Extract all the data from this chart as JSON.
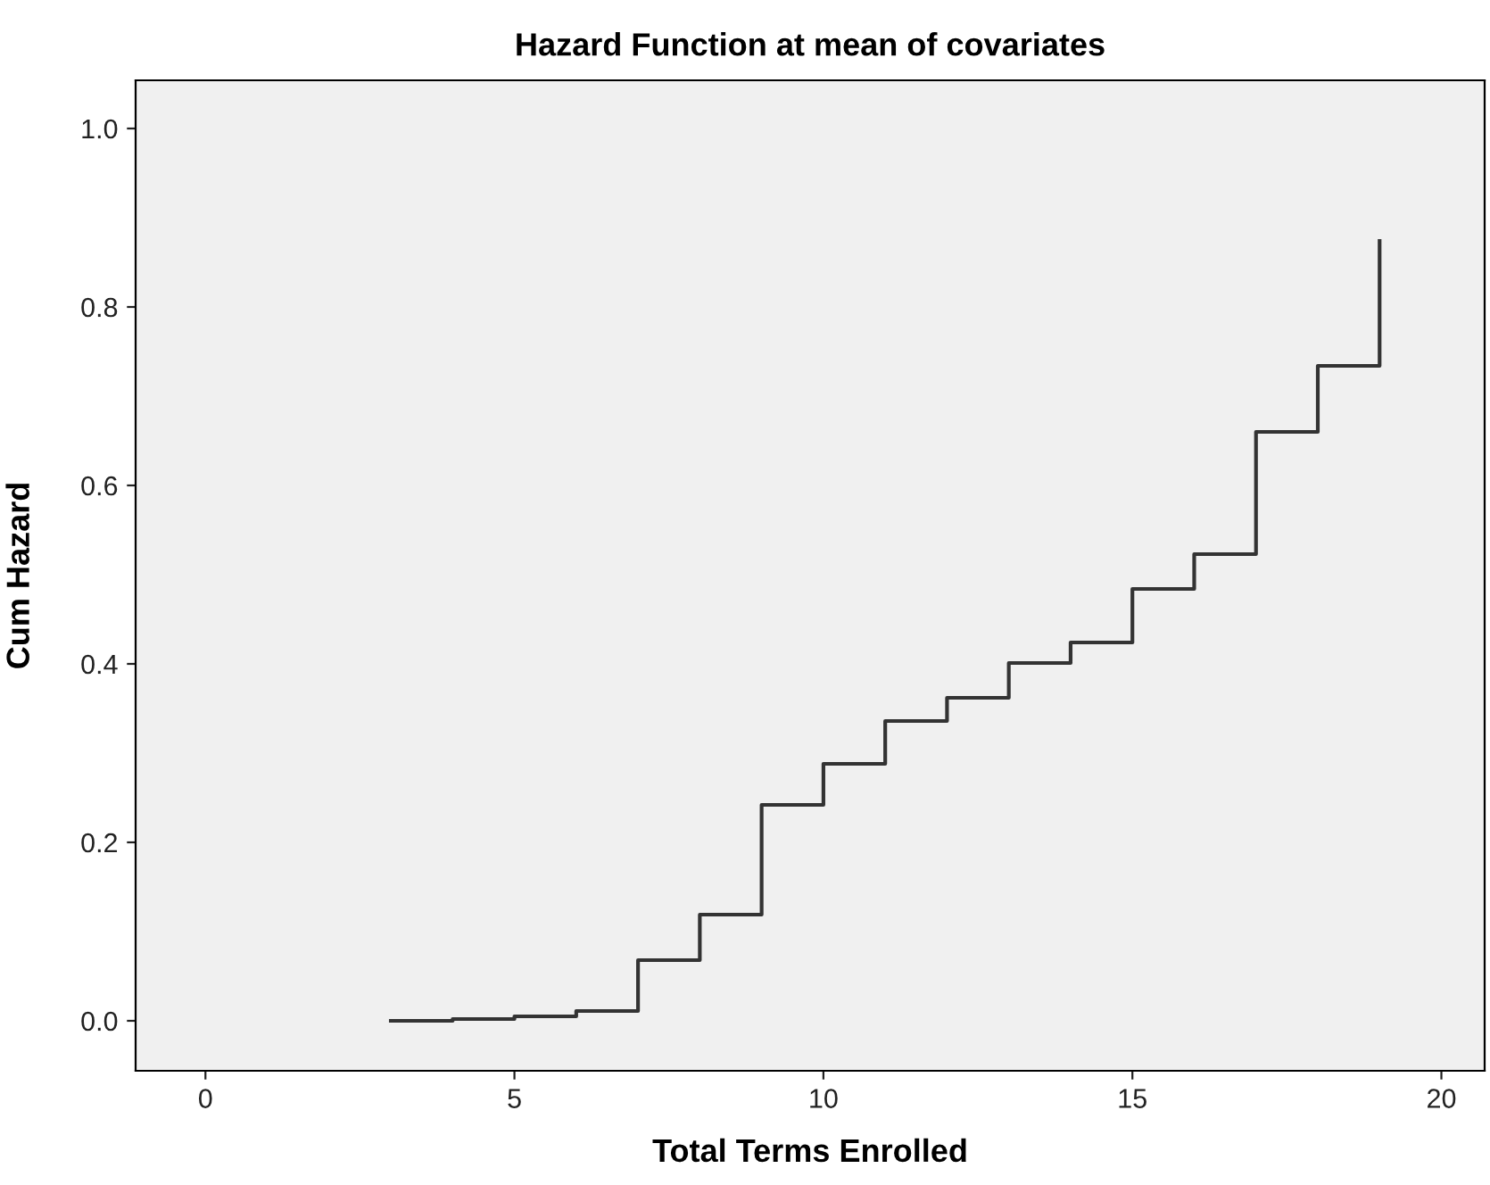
{
  "chart_data": {
    "type": "step",
    "title": "Hazard Function at mean of covariates",
    "xlabel": "Total Terms Enrolled",
    "ylabel": "Cum Hazard",
    "x": [
      3,
      4,
      5,
      6,
      7,
      8,
      9,
      10,
      11,
      12,
      13,
      14,
      15,
      16,
      17,
      18,
      19
    ],
    "series": [
      {
        "color": "#333333",
        "values": [
          0.0,
          0.002,
          0.005,
          0.011,
          0.068,
          0.119,
          0.242,
          0.288,
          0.336,
          0.362,
          0.401,
          0.424,
          0.484,
          0.523,
          0.66,
          0.734,
          0.874
        ]
      }
    ],
    "xlim": [
      -1.13,
      20.7
    ],
    "ylim": [
      -0.056,
      1.054
    ],
    "xticks": [
      0,
      5,
      10,
      15,
      20
    ],
    "yticks": [
      {
        "value": 0,
        "label": "0.0"
      },
      {
        "value": 0.2,
        "label": "0.2"
      },
      {
        "value": 0.4,
        "label": "0.4"
      },
      {
        "value": 0.6,
        "label": "0.6"
      },
      {
        "value": 0.8,
        "label": "0.8"
      },
      {
        "value": 1.0,
        "label": "1.0"
      }
    ],
    "grid": false
  }
}
